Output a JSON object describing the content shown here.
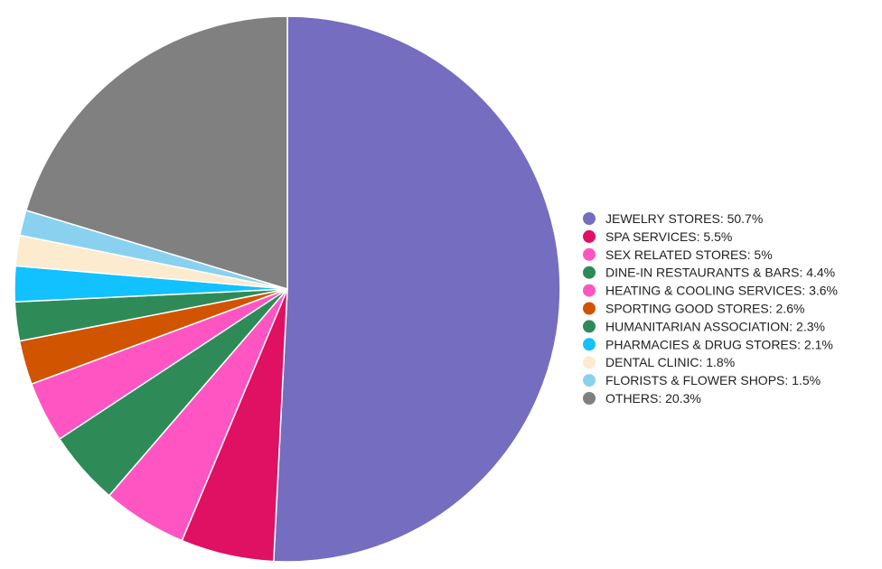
{
  "chart_data": {
    "type": "pie",
    "title": "",
    "legend_position": "right",
    "slices": [
      {
        "label": "JEWELRY STORES",
        "value": 50.7,
        "legend_text": "JEWELRY STORES: 50.7%",
        "color": "#746dc0"
      },
      {
        "label": "SPA SERVICES",
        "value": 5.5,
        "legend_text": "SPA SERVICES: 5.5%",
        "color": "#e01062"
      },
      {
        "label": "SEX RELATED STORES",
        "value": 5,
        "legend_text": "SEX RELATED STORES: 5%",
        "color": "#ff55c2"
      },
      {
        "label": "DINE-IN RESTAURANTS & BARS",
        "value": 4.4,
        "legend_text": "DINE-IN RESTAURANTS & BARS: 4.4%",
        "color": "#2e8b57"
      },
      {
        "label": "HEATING & COOLING SERVICES",
        "value": 3.6,
        "legend_text": "HEATING & COOLING SERVICES: 3.6%",
        "color": "#ff55c2"
      },
      {
        "label": "SPORTING GOOD STORES",
        "value": 2.6,
        "legend_text": "SPORTING GOOD STORES: 2.6%",
        "color": "#d15400"
      },
      {
        "label": "HUMANITARIAN ASSOCIATION",
        "value": 2.3,
        "legend_text": "HUMANITARIAN ASSOCIATION: 2.3%",
        "color": "#2e8b57"
      },
      {
        "label": "PHARMACIES & DRUG STORES",
        "value": 2.1,
        "legend_text": "PHARMACIES & DRUG STORES: 2.1%",
        "color": "#12c1ff"
      },
      {
        "label": "DENTAL CLINIC",
        "value": 1.8,
        "legend_text": "DENTAL CLINIC: 1.8%",
        "color": "#fdebd0"
      },
      {
        "label": "FLORISTS & FLOWER SHOPS",
        "value": 1.5,
        "legend_text": "FLORISTS & FLOWER SHOPS: 1.5%",
        "color": "#8ad1ef"
      },
      {
        "label": "OTHERS",
        "value": 20.3,
        "legend_text": "OTHERS: 20.3%",
        "color": "#808080"
      }
    ]
  }
}
